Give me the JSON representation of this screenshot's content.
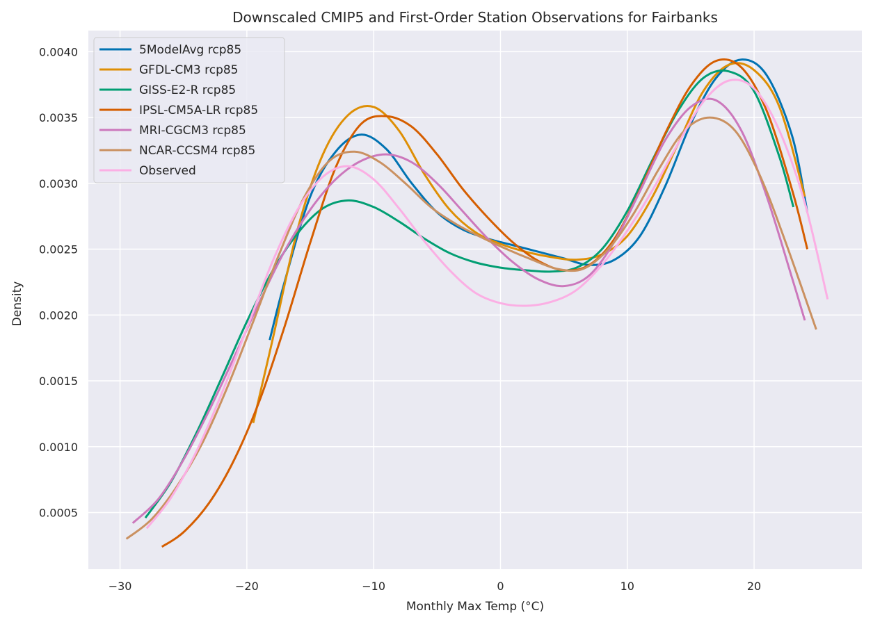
{
  "chart_data": {
    "type": "line",
    "title": "Downscaled CMIP5 and First-Order Station Observations for Fairbanks",
    "xlabel": "Monthly Max Temp (°C)",
    "ylabel": "Density",
    "xlim": [
      -32.5,
      28.5
    ],
    "ylim": [
      7e-05,
      0.00416
    ],
    "xticks": [
      -30,
      -20,
      -10,
      0,
      10,
      20
    ],
    "xtick_labels": [
      "−30",
      "−20",
      "−10",
      "0",
      "10",
      "20"
    ],
    "yticks": [
      0.0005,
      0.001,
      0.0015,
      0.002,
      0.0025,
      0.003,
      0.0035,
      0.004
    ],
    "ytick_labels": [
      "0.0005",
      "0.0010",
      "0.0015",
      "0.0020",
      "0.0025",
      "0.0030",
      "0.0035",
      "0.0040"
    ],
    "grid": true,
    "legend_position": "top-left",
    "series": [
      {
        "name": "5ModelAvg rcp85",
        "color": "#0173b2",
        "points": [
          [
            -18.2,
            0.00181
          ],
          [
            -17,
            0.00226
          ],
          [
            -15,
            0.0029
          ],
          [
            -13,
            0.00324
          ],
          [
            -11,
            0.00337
          ],
          [
            -9,
            0.00326
          ],
          [
            -7,
            0.003
          ],
          [
            -5,
            0.00278
          ],
          [
            -3,
            0.00265
          ],
          [
            -1,
            0.00258
          ],
          [
            1,
            0.00253
          ],
          [
            3,
            0.00248
          ],
          [
            5,
            0.00243
          ],
          [
            7,
            0.00238
          ],
          [
            9,
            0.00242
          ],
          [
            11,
            0.0026
          ],
          [
            13,
            0.00298
          ],
          [
            15,
            0.00345
          ],
          [
            17,
            0.0038
          ],
          [
            19,
            0.00394
          ],
          [
            21,
            0.00382
          ],
          [
            23,
            0.00336
          ],
          [
            24.2,
            0.00278
          ]
        ]
      },
      {
        "name": "GFDL-CM3 rcp85",
        "color": "#de8f05",
        "points": [
          [
            -19.5,
            0.00118
          ],
          [
            -18,
            0.0018
          ],
          [
            -16,
            0.00265
          ],
          [
            -14,
            0.00322
          ],
          [
            -12,
            0.00352
          ],
          [
            -10,
            0.00358
          ],
          [
            -8,
            0.0034
          ],
          [
            -6,
            0.00307
          ],
          [
            -4,
            0.0028
          ],
          [
            -2,
            0.00263
          ],
          [
            0,
            0.00254
          ],
          [
            2,
            0.00248
          ],
          [
            4,
            0.00244
          ],
          [
            6,
            0.00242
          ],
          [
            8,
            0.00246
          ],
          [
            10,
            0.0026
          ],
          [
            12,
            0.0029
          ],
          [
            14,
            0.0033
          ],
          [
            16,
            0.0037
          ],
          [
            18,
            0.0039
          ],
          [
            20,
            0.00386
          ],
          [
            22,
            0.00358
          ],
          [
            24,
            0.0029
          ]
        ]
      },
      {
        "name": "GISS-E2-R rcp85",
        "color": "#029e73",
        "points": [
          [
            -28,
            0.00046
          ],
          [
            -26,
            0.00073
          ],
          [
            -24,
            0.0011
          ],
          [
            -22,
            0.00152
          ],
          [
            -20,
            0.00195
          ],
          [
            -18,
            0.00233
          ],
          [
            -16,
            0.00262
          ],
          [
            -14,
            0.00281
          ],
          [
            -12,
            0.00287
          ],
          [
            -10,
            0.00282
          ],
          [
            -8,
            0.00271
          ],
          [
            -6,
            0.00258
          ],
          [
            -4,
            0.00247
          ],
          [
            -2,
            0.0024
          ],
          [
            0,
            0.00236
          ],
          [
            2,
            0.00234
          ],
          [
            4,
            0.00233
          ],
          [
            6,
            0.00236
          ],
          [
            8,
            0.0025
          ],
          [
            10,
            0.00279
          ],
          [
            12,
            0.00318
          ],
          [
            14,
            0.00355
          ],
          [
            16,
            0.0038
          ],
          [
            18,
            0.00385
          ],
          [
            20,
            0.0037
          ],
          [
            22,
            0.0032
          ],
          [
            23.1,
            0.00282
          ]
        ]
      },
      {
        "name": "IPSL-CM5A-LR rcp85",
        "color": "#d55e00",
        "points": [
          [
            -26.7,
            0.00024
          ],
          [
            -25,
            0.00035
          ],
          [
            -23,
            0.00057
          ],
          [
            -21,
            0.0009
          ],
          [
            -19,
            0.00135
          ],
          [
            -17,
            0.00192
          ],
          [
            -15,
            0.00255
          ],
          [
            -13,
            0.00312
          ],
          [
            -11,
            0.00345
          ],
          [
            -9,
            0.00351
          ],
          [
            -7,
            0.00343
          ],
          [
            -5,
            0.00322
          ],
          [
            -3,
            0.00296
          ],
          [
            -1,
            0.00274
          ],
          [
            1,
            0.00255
          ],
          [
            3,
            0.00241
          ],
          [
            5,
            0.00234
          ],
          [
            7,
            0.00238
          ],
          [
            9,
            0.00258
          ],
          [
            11,
            0.00295
          ],
          [
            13,
            0.00338
          ],
          [
            15,
            0.00374
          ],
          [
            17,
            0.00393
          ],
          [
            19,
            0.00388
          ],
          [
            21,
            0.00355
          ],
          [
            23,
            0.00295
          ],
          [
            24.2,
            0.0025
          ]
        ]
      },
      {
        "name": "MRI-CGCM3 rcp85",
        "color": "#cc78bc",
        "points": [
          [
            -29,
            0.00042
          ],
          [
            -27,
            0.0006
          ],
          [
            -25,
            0.0009
          ],
          [
            -23,
            0.00127
          ],
          [
            -21,
            0.00168
          ],
          [
            -19,
            0.0021
          ],
          [
            -17,
            0.00249
          ],
          [
            -15,
            0.0028
          ],
          [
            -13,
            0.00303
          ],
          [
            -11,
            0.00317
          ],
          [
            -9,
            0.00322
          ],
          [
            -7,
            0.00316
          ],
          [
            -5,
            0.003
          ],
          [
            -3,
            0.00279
          ],
          [
            -1,
            0.00258
          ],
          [
            1,
            0.0024
          ],
          [
            3,
            0.00227
          ],
          [
            5,
            0.00222
          ],
          [
            7,
            0.0023
          ],
          [
            9,
            0.00256
          ],
          [
            11,
            0.00294
          ],
          [
            13,
            0.00333
          ],
          [
            15,
            0.00358
          ],
          [
            17,
            0.00363
          ],
          [
            19,
            0.0034
          ],
          [
            21,
            0.0029
          ],
          [
            23,
            0.00228
          ],
          [
            24,
            0.00196
          ]
        ]
      },
      {
        "name": "NCAR-CCSM4 rcp85",
        "color": "#ca9161",
        "points": [
          [
            -29.5,
            0.0003
          ],
          [
            -27.5,
            0.00045
          ],
          [
            -25.5,
            0.0007
          ],
          [
            -23.5,
            0.00103
          ],
          [
            -21.5,
            0.00146
          ],
          [
            -19.5,
            0.00195
          ],
          [
            -17.5,
            0.00245
          ],
          [
            -15.5,
            0.00289
          ],
          [
            -13.5,
            0.00317
          ],
          [
            -11.5,
            0.00324
          ],
          [
            -9.5,
            0.00316
          ],
          [
            -7.5,
            0.003
          ],
          [
            -5.5,
            0.00282
          ],
          [
            -3.5,
            0.00269
          ],
          [
            -1.5,
            0.00259
          ],
          [
            0.5,
            0.0025
          ],
          [
            2.5,
            0.00242
          ],
          [
            4.5,
            0.00235
          ],
          [
            6.5,
            0.00235
          ],
          [
            8.5,
            0.0025
          ],
          [
            10.5,
            0.00277
          ],
          [
            12.5,
            0.00311
          ],
          [
            14.5,
            0.0034
          ],
          [
            16.5,
            0.0035
          ],
          [
            18.5,
            0.0034
          ],
          [
            20.5,
            0.00305
          ],
          [
            22.5,
            0.00255
          ],
          [
            24.9,
            0.00189
          ]
        ]
      },
      {
        "name": "Observed",
        "color": "#fbafe4",
        "points": [
          [
            -27.9,
            0.00038
          ],
          [
            -26,
            0.00061
          ],
          [
            -24,
            0.00096
          ],
          [
            -22,
            0.0014
          ],
          [
            -20,
            0.0019
          ],
          [
            -18,
            0.0024
          ],
          [
            -16,
            0.0028
          ],
          [
            -14,
            0.00305
          ],
          [
            -12,
            0.00313
          ],
          [
            -10,
            0.00303
          ],
          [
            -8,
            0.00281
          ],
          [
            -6,
            0.00256
          ],
          [
            -4,
            0.00234
          ],
          [
            -2,
            0.00217
          ],
          [
            0,
            0.00209
          ],
          [
            2,
            0.00207
          ],
          [
            4,
            0.0021
          ],
          [
            6,
            0.00219
          ],
          [
            8,
            0.00238
          ],
          [
            10,
            0.00264
          ],
          [
            12,
            0.00295
          ],
          [
            14,
            0.0033
          ],
          [
            16,
            0.00362
          ],
          [
            18,
            0.00378
          ],
          [
            20,
            0.00372
          ],
          [
            22,
            0.0034
          ],
          [
            24,
            0.00285
          ],
          [
            25.8,
            0.00212
          ]
        ]
      }
    ]
  }
}
